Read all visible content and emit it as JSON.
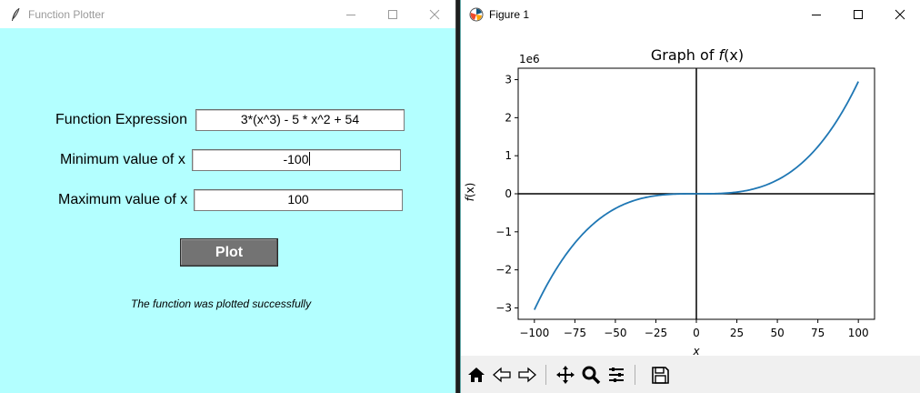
{
  "left_window": {
    "title": "Function Plotter",
    "title_icon": "feather-icon",
    "form": {
      "expression": {
        "label": "Function Expression",
        "value": "3*(x^3) - 5 * x^2 + 54"
      },
      "min_x": {
        "label": "Minimum value of x",
        "value": "-100"
      },
      "max_x": {
        "label": "Maximum value of x",
        "value": "100"
      }
    },
    "plot_button_label": "Plot",
    "status_text": "The function was plotted successfully",
    "colors": {
      "background": "#b3ffff",
      "button": "#737373"
    }
  },
  "right_window": {
    "title": "Figure 1",
    "title_icon": "matplotlib-icon",
    "toolbar": [
      "home-icon",
      "back-icon",
      "forward-icon",
      "pan-icon",
      "zoom-icon",
      "configure-icon",
      "save-icon"
    ]
  },
  "chart_data": {
    "type": "line",
    "title": "Graph of f(x)",
    "title_parts": {
      "before": "Graph of ",
      "italic": "f",
      "after": "(x)"
    },
    "xlabel": "x",
    "ylabel": "f(x)",
    "ylabel_parts": {
      "italic": "f",
      "after": "(x)"
    },
    "y_offset_text": "1e6",
    "xlim": [
      -110,
      110
    ],
    "ylim": [
      -3.3,
      3.3
    ],
    "xticks": [
      -100,
      -75,
      -50,
      -25,
      0,
      25,
      50,
      75,
      100
    ],
    "xtick_labels": [
      "−100",
      "−75",
      "−50",
      "−25",
      "0",
      "25",
      "50",
      "75",
      "100"
    ],
    "yticks": [
      -3,
      -2,
      -1,
      0,
      1,
      2,
      3
    ],
    "ytick_labels": [
      "−3",
      "−2",
      "−1",
      "0",
      "1",
      "2",
      "3"
    ],
    "x_range": [
      -100,
      100
    ],
    "function": "3*(x^3) - 5 * x^2 + 54",
    "line_color": "#1f77b4",
    "axhline": 0,
    "axvline": 0,
    "grid": false
  }
}
